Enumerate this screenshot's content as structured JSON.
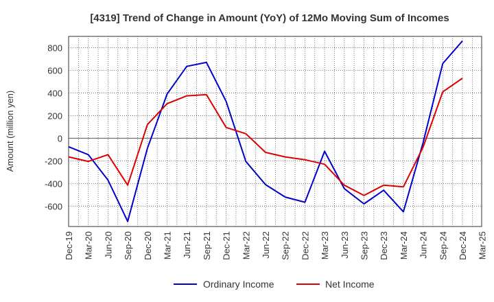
{
  "chart_data": {
    "type": "line",
    "title": "[4319]  Trend of Change in Amount (YoY) of 12Mo Moving Sum of Incomes",
    "xlabel": "",
    "ylabel": "Amount (million yen)",
    "ylim": [
      -780,
      900
    ],
    "yticks": [
      800,
      600,
      400,
      200,
      0,
      -200,
      -400,
      -600
    ],
    "grid": true,
    "legend_position": "bottom",
    "categories": [
      "Dec-19",
      "Mar-20",
      "Jun-20",
      "Sep-20",
      "Dec-20",
      "Mar-21",
      "Jun-21",
      "Sep-21",
      "Dec-21",
      "Mar-22",
      "Jun-22",
      "Sep-22",
      "Dec-22",
      "Mar-23",
      "Jun-23",
      "Sep-23",
      "Dec-23",
      "Mar-24",
      "Jun-24",
      "Sep-24",
      "Dec-24",
      "Mar-25"
    ],
    "series": [
      {
        "name": "Ordinary Income",
        "color": "#0000cc",
        "values": [
          -75,
          -145,
          -370,
          -735,
          -90,
          390,
          635,
          670,
          325,
          -205,
          -410,
          -520,
          -565,
          -115,
          -445,
          -580,
          -460,
          -650,
          -40,
          660,
          860,
          null
        ]
      },
      {
        "name": "Net Income",
        "color": "#dd0000",
        "values": [
          -165,
          -205,
          -145,
          -415,
          120,
          305,
          375,
          385,
          95,
          40,
          -125,
          -165,
          -190,
          -230,
          -415,
          -505,
          -415,
          -430,
          -80,
          410,
          530,
          null
        ]
      }
    ]
  }
}
